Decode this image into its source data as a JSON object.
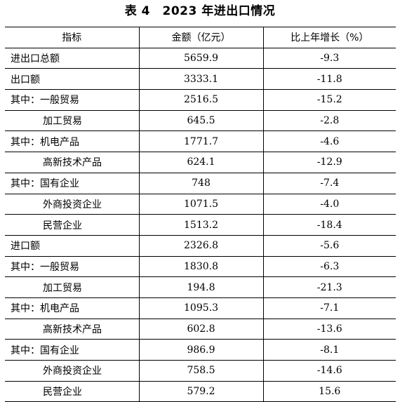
{
  "title": "表 4　2023 年进出口情况",
  "headers": [
    "指标",
    "金额（亿元）",
    "比上年增长（%）"
  ],
  "rows": [
    {
      "indicator": "进出口总额",
      "amount": "5659.9",
      "growth": "-9.3"
    },
    {
      "indicator": "出口额",
      "amount": "3333.1",
      "growth": "-11.8"
    },
    {
      "indicator": "其中：一般贸易",
      "amount": "2516.5",
      "growth": "-15.2"
    },
    {
      "indicator": "加工贸易",
      "amount": "645.5",
      "growth": "-2.8"
    },
    {
      "indicator": "其中：机电产品",
      "amount": "1771.7",
      "growth": "-4.6"
    },
    {
      "indicator": "高新技术产品",
      "amount": "624.1",
      "growth": "-12.9"
    },
    {
      "indicator": "其中：国有企业",
      "amount": "748",
      "growth": "-7.4"
    },
    {
      "indicator": "外商投资企业",
      "amount": "1071.5",
      "growth": "-4.0"
    },
    {
      "indicator": "民营企业",
      "amount": "1513.2",
      "growth": "-18.4"
    },
    {
      "indicator": "进口额",
      "amount": "2326.8",
      "growth": "-5.6"
    },
    {
      "indicator": "其中：一般贸易",
      "amount": "1830.8",
      "growth": "-6.3"
    },
    {
      "indicator": "加工贸易",
      "amount": "194.8",
      "growth": "-21.3"
    },
    {
      "indicator": "其中：机电产品",
      "amount": "1095.3",
      "growth": "-7.1"
    },
    {
      "indicator": "高新技术产品",
      "amount": "602.8",
      "growth": "-13.6"
    },
    {
      "indicator": "其中：国有企业",
      "amount": "986.9",
      "growth": "-8.1"
    },
    {
      "indicator": "外商投资企业",
      "amount": "758.5",
      "growth": "-14.6"
    },
    {
      "indicator": "民营企业",
      "amount": "579.2",
      "growth": "15.6"
    }
  ]
}
